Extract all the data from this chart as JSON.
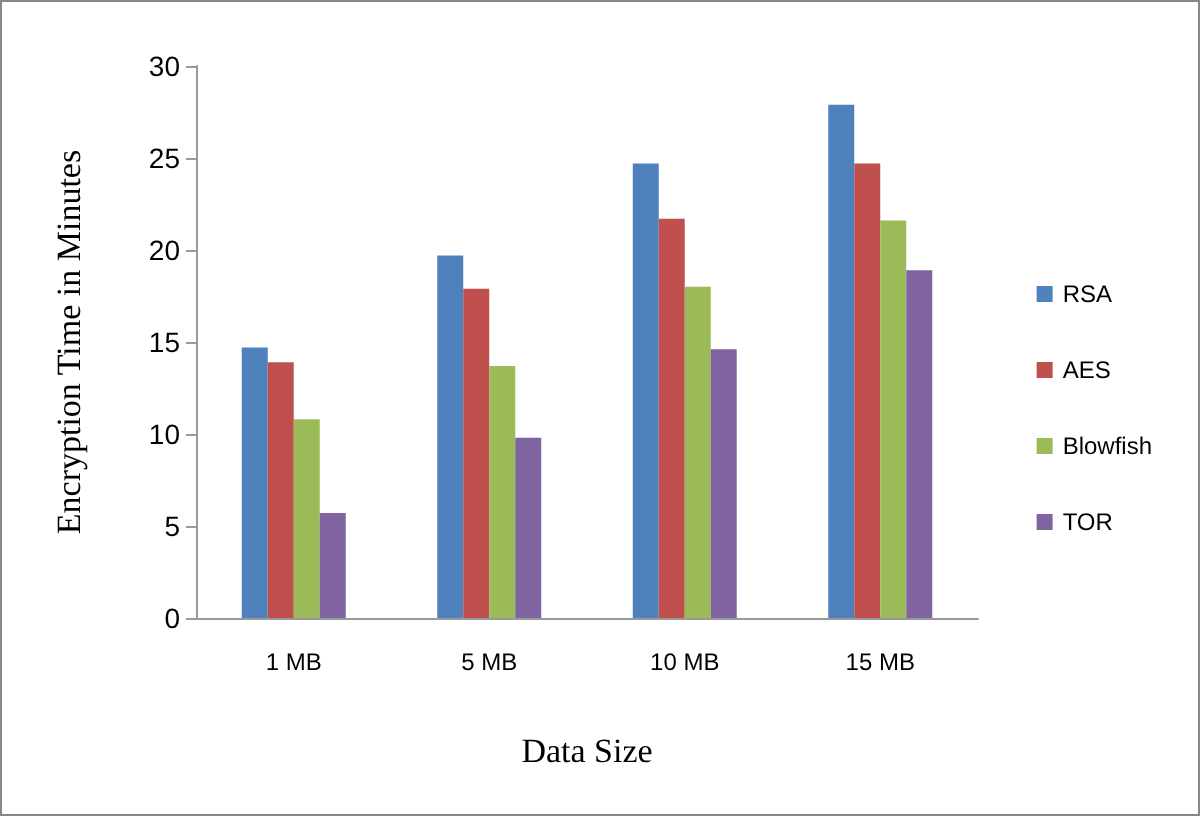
{
  "chart_data": {
    "type": "bar",
    "xlabel": "Data Size",
    "ylabel": "Encryption Time in Minutes",
    "categories": [
      "1 MB",
      "5 MB",
      "10 MB",
      "15 MB"
    ],
    "series": [
      {
        "name": "RSA",
        "color": "#4f81bd",
        "values": [
          14.7,
          19.7,
          24.7,
          27.9
        ]
      },
      {
        "name": "AES",
        "color": "#c0504d",
        "values": [
          13.9,
          17.9,
          21.7,
          24.7
        ]
      },
      {
        "name": "Blowfish",
        "color": "#9bbb59",
        "values": [
          10.8,
          13.7,
          18.0,
          21.6
        ]
      },
      {
        "name": "TOR",
        "color": "#8064a2",
        "values": [
          5.7,
          9.8,
          14.6,
          18.9
        ]
      }
    ],
    "ylim": [
      0,
      30
    ],
    "yticks": [
      0,
      5,
      10,
      15,
      20,
      25,
      30
    ],
    "grid": false,
    "legend": "right"
  }
}
